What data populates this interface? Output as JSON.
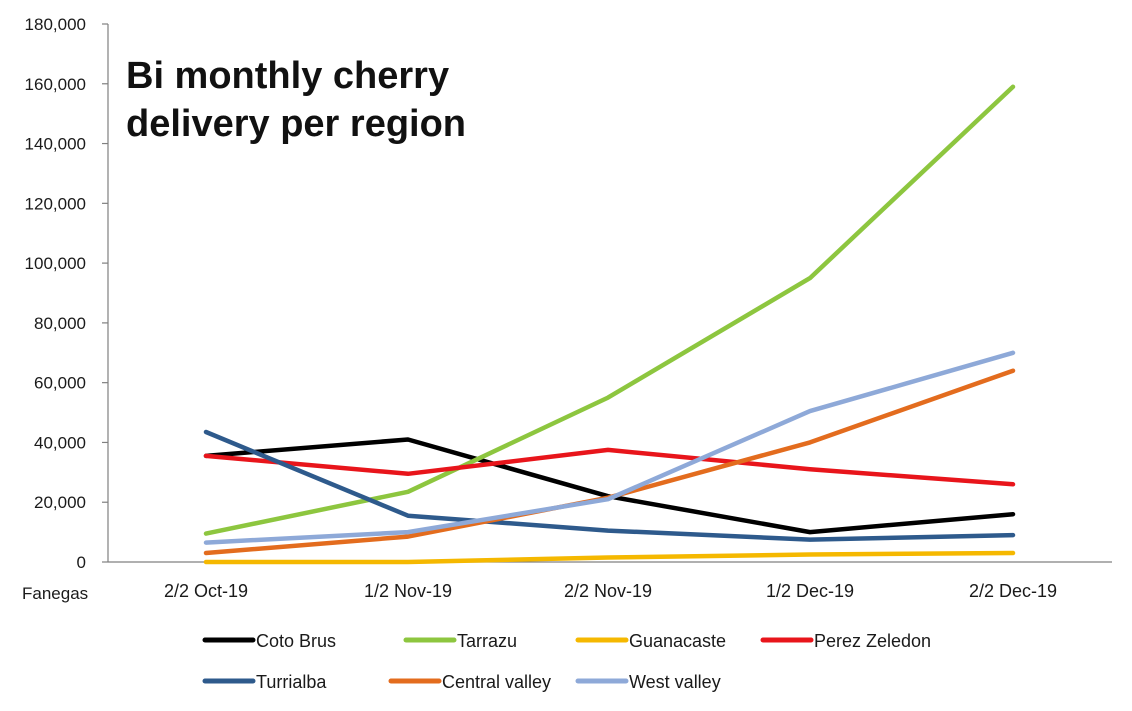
{
  "chart_data": {
    "type": "line",
    "title_lines": [
      "Bi monthly cherry",
      "delivery per region"
    ],
    "ylabel": "Fanegas",
    "xlabel": "",
    "categories": [
      "2/2 Oct-19",
      "1/2 Nov-19",
      "2/2 Nov-19",
      "1/2 Dec-19",
      "2/2 Dec-19"
    ],
    "ylim": [
      0,
      180000
    ],
    "yticks": [
      0,
      20000,
      40000,
      60000,
      80000,
      100000,
      120000,
      140000,
      160000,
      180000
    ],
    "ytick_labels": [
      "0",
      "20,000",
      "40,000",
      "60,000",
      "80,000",
      "100,000",
      "120,000",
      "140,000",
      "160,000",
      "180,000"
    ],
    "grid": false,
    "legend_position": "bottom",
    "series": [
      {
        "name": "Coto Brus",
        "color": "#000000",
        "values": [
          35500,
          41000,
          22000,
          10000,
          16000
        ]
      },
      {
        "name": "Tarrazu",
        "color": "#8DC63F",
        "values": [
          9500,
          23500,
          55000,
          95000,
          159000
        ]
      },
      {
        "name": "Guanacaste",
        "color": "#F5B800",
        "values": [
          0,
          0,
          1500,
          2500,
          3000
        ]
      },
      {
        "name": "Perez Zeledon",
        "color": "#E8151B",
        "values": [
          35500,
          29500,
          37500,
          31000,
          26000
        ]
      },
      {
        "name": "Turrialba",
        "color": "#2E5A8C",
        "values": [
          43500,
          15500,
          10500,
          7500,
          9000
        ]
      },
      {
        "name": "Central valley",
        "color": "#E36C1E",
        "values": [
          3000,
          8500,
          21500,
          40000,
          64000
        ]
      },
      {
        "name": "West valley",
        "color": "#8EA9D8",
        "values": [
          6500,
          10000,
          21000,
          50500,
          70000
        ]
      }
    ]
  }
}
